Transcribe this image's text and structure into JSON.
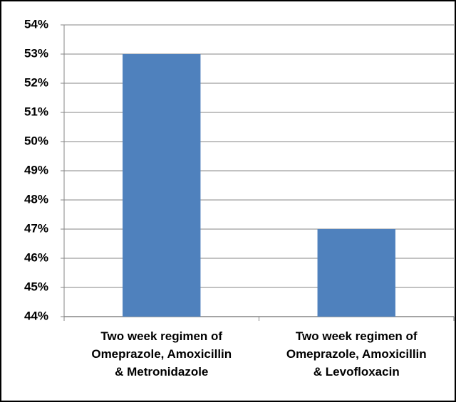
{
  "chart_data": {
    "type": "bar",
    "categories": [
      "Two week regimen of\nOmeprazole, Amoxicillin\n& Metronidazole",
      "Two week regimen of\nOmeprazole, Amoxicillin\n& Levofloxacin"
    ],
    "values": [
      53,
      47
    ],
    "color": "#4f81bd",
    "ylim": [
      44,
      54
    ],
    "yticks": [
      {
        "value": 44,
        "label": "44%"
      },
      {
        "value": 45,
        "label": "45%"
      },
      {
        "value": 46,
        "label": "46%"
      },
      {
        "value": 47,
        "label": "47%"
      },
      {
        "value": 48,
        "label": "48%"
      },
      {
        "value": 49,
        "label": "49%"
      },
      {
        "value": 50,
        "label": "50%"
      },
      {
        "value": 51,
        "label": "51%"
      },
      {
        "value": 52,
        "label": "52%"
      },
      {
        "value": 53,
        "label": "53%"
      },
      {
        "value": 54,
        "label": "54%"
      }
    ],
    "grid": true
  }
}
